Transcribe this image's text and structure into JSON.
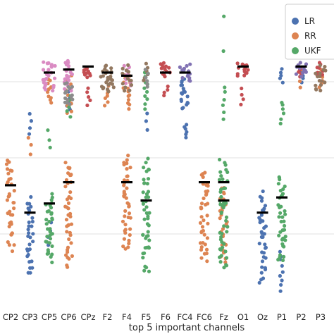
{
  "chart_data": {
    "type": "scatter",
    "subtype": "swarm",
    "xlabel": "top 5 important channels",
    "ylabel": "",
    "categories": [
      "CP2",
      "CP3",
      "CP5",
      "CP6",
      "CPz",
      "F2",
      "F4",
      "F5",
      "F6",
      "FC4",
      "FC6",
      "Fz",
      "O1",
      "Oz",
      "P1",
      "P2",
      "P3"
    ],
    "legend": {
      "position": "top-right",
      "entries": [
        "LR",
        "RR",
        "UKF"
      ]
    },
    "colors": {
      "LR": "#4c72b0",
      "RR": "#dd8452",
      "UKF": "#55a868",
      "pink": "#da8bc3",
      "red": "#c44e52",
      "brown": "#937860",
      "purple": "#8172b3",
      "grey": "#8c8c8c",
      "median": "#000000",
      "grid": "#ebebeb"
    },
    "grid": true,
    "ylim": [
      0,
      1
    ],
    "series": [
      {
        "name": "LR",
        "color": "#4c72b0",
        "points": [
          {
            "c": 1,
            "lo": 0.07,
            "hi": 0.42,
            "n": 30,
            "w": 0.16
          },
          {
            "c": 1,
            "lo": 0.56,
            "hi": 0.66,
            "n": 4,
            "w": 0.1
          },
          {
            "c": 2,
            "lo": 0.2,
            "hi": 0.3,
            "n": 4,
            "w": 0.1
          },
          {
            "c": 3,
            "lo": 0.64,
            "hi": 0.74,
            "n": 10,
            "w": 0.1
          },
          {
            "c": 7,
            "lo": 0.58,
            "hi": 0.66,
            "n": 3,
            "w": 0.08
          },
          {
            "c": 9,
            "lo": 0.64,
            "hi": 0.78,
            "n": 18,
            "w": 0.2
          },
          {
            "c": 9,
            "lo": 0.56,
            "hi": 0.62,
            "n": 6,
            "w": 0.1
          },
          {
            "c": 13,
            "lo": 0.04,
            "hi": 0.44,
            "n": 36,
            "w": 0.18
          },
          {
            "c": 14,
            "lo": 0.04,
            "hi": 0.22,
            "n": 9,
            "w": 0.1
          },
          {
            "c": 14,
            "lo": 0.74,
            "hi": 0.8,
            "n": 5,
            "w": 0.1
          },
          {
            "c": 15,
            "lo": 0.74,
            "hi": 0.8,
            "n": 5,
            "w": 0.1
          }
        ]
      },
      {
        "name": "RR",
        "color": "#dd8452",
        "points": [
          {
            "c": 0,
            "lo": 0.14,
            "hi": 0.56,
            "n": 36,
            "w": 0.2
          },
          {
            "c": 1,
            "lo": 0.5,
            "hi": 0.58,
            "n": 3,
            "w": 0.08
          },
          {
            "c": 2,
            "lo": 0.66,
            "hi": 0.78,
            "n": 10,
            "w": 0.1
          },
          {
            "c": 3,
            "lo": 0.08,
            "hi": 0.56,
            "n": 42,
            "w": 0.2
          },
          {
            "c": 3,
            "lo": 0.62,
            "hi": 0.8,
            "n": 12,
            "w": 0.15
          },
          {
            "c": 5,
            "lo": 0.66,
            "hi": 0.76,
            "n": 8,
            "w": 0.15
          },
          {
            "c": 6,
            "lo": 0.13,
            "hi": 0.57,
            "n": 42,
            "w": 0.2
          },
          {
            "c": 6,
            "lo": 0.64,
            "hi": 0.8,
            "n": 14,
            "w": 0.18
          },
          {
            "c": 10,
            "lo": 0.1,
            "hi": 0.52,
            "n": 40,
            "w": 0.2
          },
          {
            "c": 11,
            "lo": 0.1,
            "hi": 0.46,
            "n": 30,
            "w": 0.2
          },
          {
            "c": 15,
            "lo": 0.72,
            "hi": 0.8,
            "n": 4,
            "w": 0.1
          },
          {
            "c": 16,
            "lo": 0.72,
            "hi": 0.8,
            "n": 6,
            "w": 0.1
          }
        ]
      },
      {
        "name": "UKF",
        "color": "#55a868",
        "points": [
          {
            "c": 2,
            "lo": 0.12,
            "hi": 0.42,
            "n": 34,
            "w": 0.18
          },
          {
            "c": 2,
            "lo": 0.52,
            "hi": 0.6,
            "n": 3,
            "w": 0.08
          },
          {
            "c": 3,
            "lo": 0.62,
            "hi": 0.72,
            "n": 5,
            "w": 0.1
          },
          {
            "c": 7,
            "lo": 0.06,
            "hi": 0.56,
            "n": 46,
            "w": 0.18
          },
          {
            "c": 7,
            "lo": 0.64,
            "hi": 0.8,
            "n": 10,
            "w": 0.12
          },
          {
            "c": 11,
            "lo": 0.06,
            "hi": 0.56,
            "n": 46,
            "w": 0.22
          },
          {
            "c": 11,
            "lo": 0.6,
            "hi": 0.76,
            "n": 6,
            "w": 0.08
          },
          {
            "c": 11,
            "lo": 0.96,
            "hi": 0.97,
            "n": 1,
            "w": 0.02
          },
          {
            "c": 11,
            "lo": 0.84,
            "hi": 0.86,
            "n": 1,
            "w": 0.02
          },
          {
            "c": 14,
            "lo": 0.1,
            "hi": 0.5,
            "n": 38,
            "w": 0.2
          },
          {
            "c": 14,
            "lo": 0.6,
            "hi": 0.7,
            "n": 6,
            "w": 0.1
          }
        ]
      },
      {
        "name": "",
        "color": "#da8bc3",
        "points": [
          {
            "c": 2,
            "lo": 0.7,
            "hi": 0.84,
            "n": 26,
            "w": 0.32
          },
          {
            "c": 3,
            "lo": 0.7,
            "hi": 0.84,
            "n": 22,
            "w": 0.22
          },
          {
            "c": 6,
            "lo": 0.72,
            "hi": 0.82,
            "n": 10,
            "w": 0.2
          }
        ]
      },
      {
        "name": "",
        "color": "#c44e52",
        "points": [
          {
            "c": 4,
            "lo": 0.76,
            "hi": 0.8,
            "n": 10,
            "w": 0.28
          },
          {
            "c": 4,
            "lo": 0.66,
            "hi": 0.74,
            "n": 5,
            "w": 0.12
          },
          {
            "c": 8,
            "lo": 0.76,
            "hi": 0.82,
            "n": 14,
            "w": 0.3
          },
          {
            "c": 8,
            "lo": 0.7,
            "hi": 0.74,
            "n": 4,
            "w": 0.12
          },
          {
            "c": 12,
            "lo": 0.76,
            "hi": 0.82,
            "n": 14,
            "w": 0.3
          },
          {
            "c": 12,
            "lo": 0.66,
            "hi": 0.74,
            "n": 4,
            "w": 0.12
          },
          {
            "c": 15,
            "lo": 0.76,
            "hi": 0.8,
            "n": 6,
            "w": 0.14
          },
          {
            "c": 16,
            "lo": 0.76,
            "hi": 0.82,
            "n": 8,
            "w": 0.2
          }
        ]
      },
      {
        "name": "",
        "color": "#937860",
        "points": [
          {
            "c": 5,
            "lo": 0.7,
            "hi": 0.82,
            "n": 26,
            "w": 0.34
          },
          {
            "c": 6,
            "lo": 0.7,
            "hi": 0.82,
            "n": 14,
            "w": 0.25
          },
          {
            "c": 7,
            "lo": 0.74,
            "hi": 0.82,
            "n": 6,
            "w": 0.14
          },
          {
            "c": 16,
            "lo": 0.7,
            "hi": 0.82,
            "n": 16,
            "w": 0.28
          }
        ]
      },
      {
        "name": "",
        "color": "#8172b3",
        "points": [
          {
            "c": 9,
            "lo": 0.74,
            "hi": 0.82,
            "n": 14,
            "w": 0.3
          },
          {
            "c": 15,
            "lo": 0.76,
            "hi": 0.82,
            "n": 12,
            "w": 0.26
          }
        ]
      },
      {
        "name": "",
        "color": "#8c8c8c",
        "points": [
          {
            "c": 3,
            "lo": 0.66,
            "hi": 0.76,
            "n": 16,
            "w": 0.22
          },
          {
            "c": 7,
            "lo": 0.72,
            "hi": 0.8,
            "n": 6,
            "w": 0.14
          }
        ]
      }
    ],
    "medians": [
      {
        "c": 0,
        "y": 0.41
      },
      {
        "c": 1,
        "y": 0.32
      },
      {
        "c": 2,
        "y": 0.35
      },
      {
        "c": 2,
        "y": 0.78
      },
      {
        "c": 3,
        "y": 0.42
      },
      {
        "c": 3,
        "y": 0.79
      },
      {
        "c": 4,
        "y": 0.8
      },
      {
        "c": 5,
        "y": 0.78
      },
      {
        "c": 6,
        "y": 0.42
      },
      {
        "c": 6,
        "y": 0.77
      },
      {
        "c": 7,
        "y": 0.36
      },
      {
        "c": 8,
        "y": 0.78
      },
      {
        "c": 9,
        "y": 0.78
      },
      {
        "c": 10,
        "y": 0.42
      },
      {
        "c": 11,
        "y": 0.42
      },
      {
        "c": 11,
        "y": 0.36
      },
      {
        "c": 12,
        "y": 0.8
      },
      {
        "c": 13,
        "y": 0.32
      },
      {
        "c": 14,
        "y": 0.37
      },
      {
        "c": 15,
        "y": 0.8
      }
    ]
  }
}
